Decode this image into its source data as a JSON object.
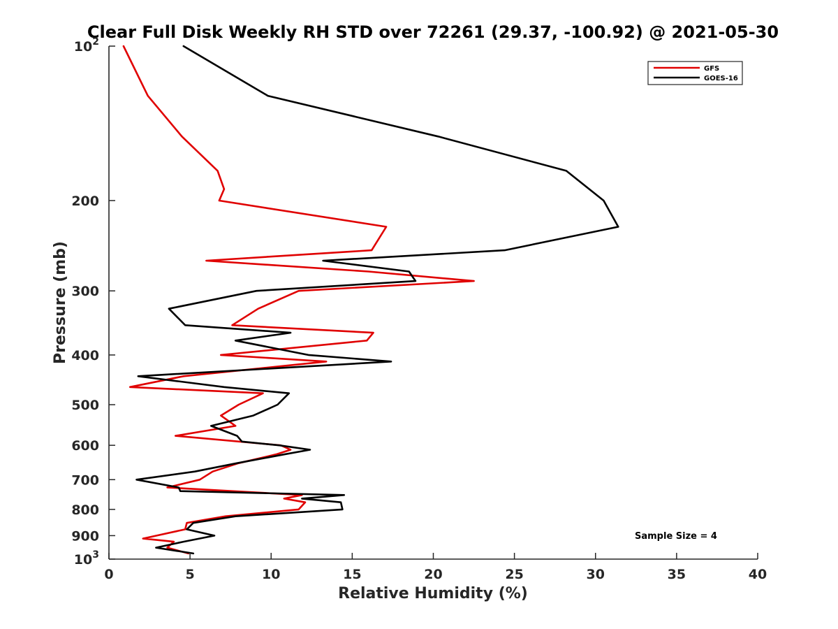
{
  "chart_data": {
    "type": "line",
    "title": "Clear Full Disk Weekly RH STD over 72261 (29.37, -100.92) @ 2021-05-30",
    "xlabel": "Relative Humidity (%)",
    "ylabel": "Pressure (mb)",
    "xlim": [
      0,
      40
    ],
    "ylim": [
      100,
      1000
    ],
    "y_scale": "log",
    "y_reversed": true,
    "grid": false,
    "legend_position": "top-right",
    "annotation": "Sample Size = 4",
    "x_ticks": [
      {
        "value": 0,
        "label": "0"
      },
      {
        "value": 5,
        "label": "5"
      },
      {
        "value": 10,
        "label": "10"
      },
      {
        "value": 15,
        "label": "15"
      },
      {
        "value": 20,
        "label": "20"
      },
      {
        "value": 25,
        "label": "25"
      },
      {
        "value": 30,
        "label": "30"
      },
      {
        "value": 35,
        "label": "35"
      },
      {
        "value": 40,
        "label": "40"
      }
    ],
    "y_ticks": [
      {
        "value": 100,
        "label": "10",
        "sup": "2"
      },
      {
        "value": 200,
        "label": "200",
        "sup": ""
      },
      {
        "value": 300,
        "label": "300",
        "sup": ""
      },
      {
        "value": 400,
        "label": "400",
        "sup": ""
      },
      {
        "value": 500,
        "label": "500",
        "sup": ""
      },
      {
        "value": 600,
        "label": "600",
        "sup": ""
      },
      {
        "value": 700,
        "label": "700",
        "sup": ""
      },
      {
        "value": 800,
        "label": "800",
        "sup": ""
      },
      {
        "value": 900,
        "label": "900",
        "sup": ""
      },
      {
        "value": 1000,
        "label": "10",
        "sup": "3"
      }
    ],
    "series": [
      {
        "name": "GFS",
        "color": "#e00000",
        "points": [
          [
            0.9,
            100
          ],
          [
            2.4,
            125
          ],
          [
            4.5,
            150
          ],
          [
            6.7,
            175
          ],
          [
            7.1,
            190
          ],
          [
            6.8,
            200
          ],
          [
            17.1,
            225
          ],
          [
            16.2,
            250
          ],
          [
            6.0,
            262
          ],
          [
            16.0,
            275
          ],
          [
            22.5,
            287
          ],
          [
            11.7,
            300
          ],
          [
            9.2,
            325
          ],
          [
            7.6,
            350
          ],
          [
            16.3,
            362
          ],
          [
            15.9,
            375
          ],
          [
            6.9,
            400
          ],
          [
            13.4,
            412
          ],
          [
            4.6,
            440
          ],
          [
            1.3,
            462
          ],
          [
            9.5,
            475
          ],
          [
            8.0,
            500
          ],
          [
            6.9,
            525
          ],
          [
            7.8,
            550
          ],
          [
            4.1,
            575
          ],
          [
            10.6,
            600
          ],
          [
            11.2,
            612
          ],
          [
            10.3,
            625
          ],
          [
            8.0,
            650
          ],
          [
            6.4,
            675
          ],
          [
            5.6,
            700
          ],
          [
            3.6,
            725
          ],
          [
            11.9,
            750
          ],
          [
            10.8,
            762
          ],
          [
            12.1,
            775
          ],
          [
            11.7,
            800
          ],
          [
            7.2,
            825
          ],
          [
            4.8,
            850
          ],
          [
            4.7,
            875
          ],
          [
            2.1,
            912
          ],
          [
            4.0,
            925
          ],
          [
            3.6,
            950
          ],
          [
            4.9,
            975
          ]
        ]
      },
      {
        "name": "GOES-16",
        "color": "#000000",
        "points": [
          [
            4.6,
            100
          ],
          [
            9.8,
            125
          ],
          [
            20.3,
            150
          ],
          [
            28.2,
            175
          ],
          [
            30.5,
            200
          ],
          [
            31.4,
            225
          ],
          [
            24.4,
            250
          ],
          [
            13.2,
            262
          ],
          [
            18.5,
            275
          ],
          [
            18.9,
            287
          ],
          [
            9.1,
            300
          ],
          [
            3.7,
            325
          ],
          [
            4.7,
            350
          ],
          [
            11.2,
            362
          ],
          [
            7.8,
            375
          ],
          [
            12.3,
            400
          ],
          [
            17.4,
            412
          ],
          [
            1.8,
            440
          ],
          [
            7.1,
            462
          ],
          [
            11.1,
            475
          ],
          [
            10.4,
            500
          ],
          [
            8.9,
            525
          ],
          [
            6.3,
            550
          ],
          [
            7.9,
            575
          ],
          [
            8.2,
            590
          ],
          [
            10.5,
            600
          ],
          [
            12.4,
            612
          ],
          [
            10.8,
            625
          ],
          [
            7.9,
            650
          ],
          [
            5.3,
            675
          ],
          [
            1.7,
            700
          ],
          [
            4.3,
            725
          ],
          [
            4.4,
            737
          ],
          [
            14.5,
            750
          ],
          [
            11.9,
            762
          ],
          [
            14.3,
            775
          ],
          [
            14.4,
            800
          ],
          [
            7.8,
            825
          ],
          [
            5.2,
            850
          ],
          [
            4.8,
            875
          ],
          [
            6.5,
            900
          ],
          [
            4.6,
            925
          ],
          [
            2.9,
            950
          ],
          [
            5.2,
            975
          ]
        ]
      }
    ]
  }
}
